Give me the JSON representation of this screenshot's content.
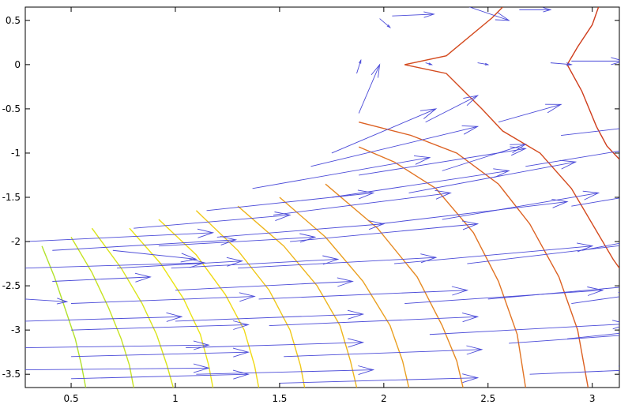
{
  "chart_data": {
    "type": "line",
    "subtype": "contour-with-quiver",
    "title": "",
    "xlabel": "",
    "ylabel": "",
    "xlim": [
      0.28,
      3.13
    ],
    "ylim": [
      -3.65,
      0.65
    ],
    "x_ticks": [
      0.5,
      1,
      1.5,
      2,
      2.5,
      3
    ],
    "x_tick_labels": [
      "0.5",
      "1",
      "1.5",
      "2",
      "2.5",
      "3"
    ],
    "y_ticks": [
      0.5,
      0,
      -0.5,
      -1,
      -1.5,
      -2,
      -2.5,
      -3,
      -3.5
    ],
    "y_tick_labels": [
      "0.5",
      "0",
      "-0.5",
      "-1",
      "-1.5",
      "-2",
      "-2.5",
      "-3",
      "-3.5"
    ],
    "grid": false,
    "legend": "none",
    "arrow_color": "#4a4ad8",
    "contours": [
      {
        "color": "#b2e22a",
        "points": [
          [
            0.36,
            -2.05
          ],
          [
            0.42,
            -2.4
          ],
          [
            0.47,
            -2.75
          ],
          [
            0.52,
            -3.1
          ],
          [
            0.55,
            -3.4
          ],
          [
            0.57,
            -3.65
          ]
        ]
      },
      {
        "color": "#c6e321",
        "points": [
          [
            0.5,
            -1.95
          ],
          [
            0.6,
            -2.35
          ],
          [
            0.68,
            -2.75
          ],
          [
            0.74,
            -3.1
          ],
          [
            0.78,
            -3.4
          ],
          [
            0.8,
            -3.65
          ]
        ]
      },
      {
        "color": "#d9e41a",
        "points": [
          [
            0.6,
            -1.85
          ],
          [
            0.74,
            -2.3
          ],
          [
            0.84,
            -2.7
          ],
          [
            0.91,
            -3.05
          ],
          [
            0.96,
            -3.4
          ],
          [
            0.99,
            -3.65
          ]
        ]
      },
      {
        "color": "#eae414",
        "points": [
          [
            0.78,
            -1.85
          ],
          [
            0.93,
            -2.25
          ],
          [
            1.04,
            -2.65
          ],
          [
            1.12,
            -3.05
          ],
          [
            1.16,
            -3.4
          ],
          [
            1.18,
            -3.65
          ]
        ]
      },
      {
        "color": "#f0d914",
        "points": [
          [
            0.92,
            -1.75
          ],
          [
            1.1,
            -2.15
          ],
          [
            1.24,
            -2.6
          ],
          [
            1.33,
            -3.0
          ],
          [
            1.38,
            -3.4
          ],
          [
            1.4,
            -3.65
          ]
        ]
      },
      {
        "color": "#f0c818",
        "points": [
          [
            1.1,
            -1.65
          ],
          [
            1.3,
            -2.1
          ],
          [
            1.45,
            -2.55
          ],
          [
            1.55,
            -3.0
          ],
          [
            1.6,
            -3.4
          ],
          [
            1.62,
            -3.65
          ]
        ]
      },
      {
        "color": "#eeb51c",
        "points": [
          [
            1.3,
            -1.6
          ],
          [
            1.52,
            -2.05
          ],
          [
            1.68,
            -2.5
          ],
          [
            1.79,
            -2.95
          ],
          [
            1.84,
            -3.35
          ],
          [
            1.87,
            -3.65
          ]
        ]
      },
      {
        "color": "#eaa020",
        "points": [
          [
            1.5,
            -1.5
          ],
          [
            1.72,
            -1.95
          ],
          [
            1.9,
            -2.45
          ],
          [
            2.03,
            -2.95
          ],
          [
            2.09,
            -3.35
          ],
          [
            2.12,
            -3.65
          ]
        ]
      },
      {
        "color": "#e68a22",
        "points": [
          [
            1.72,
            -1.35
          ],
          [
            1.97,
            -1.85
          ],
          [
            2.16,
            -2.4
          ],
          [
            2.28,
            -2.95
          ],
          [
            2.35,
            -3.35
          ],
          [
            2.38,
            -3.65
          ]
        ]
      },
      {
        "color": "#e27424",
        "points": [
          [
            1.88,
            -0.93
          ],
          [
            2.05,
            -1.1
          ],
          [
            2.25,
            -1.4
          ],
          [
            2.43,
            -1.9
          ],
          [
            2.55,
            -2.45
          ],
          [
            2.64,
            -3.05
          ],
          [
            2.68,
            -3.65
          ]
        ]
      },
      {
        "color": "#dc6022",
        "points": [
          [
            1.88,
            -0.65
          ],
          [
            2.13,
            -0.8
          ],
          [
            2.35,
            -1.0
          ],
          [
            2.55,
            -1.35
          ],
          [
            2.7,
            -1.8
          ],
          [
            2.84,
            -2.4
          ],
          [
            2.93,
            -3.0
          ],
          [
            2.98,
            -3.65
          ]
        ]
      },
      {
        "color": "#d44a1e",
        "points": [
          [
            2.1,
            0.0
          ],
          [
            2.3,
            0.1
          ],
          [
            2.52,
            0.53
          ],
          [
            2.57,
            0.65
          ]
        ]
      },
      {
        "color": "#d44a1e",
        "points": [
          [
            2.1,
            0.0
          ],
          [
            2.3,
            -0.1
          ],
          [
            2.47,
            -0.5
          ],
          [
            2.57,
            -0.75
          ],
          [
            2.75,
            -1.0
          ],
          [
            2.9,
            -1.4
          ],
          [
            3.0,
            -1.8
          ],
          [
            3.1,
            -2.2
          ],
          [
            3.13,
            -2.3
          ]
        ]
      },
      {
        "color": "#cf3d1c",
        "points": [
          [
            2.88,
            0.0
          ],
          [
            2.93,
            0.2
          ],
          [
            3.0,
            0.45
          ],
          [
            3.03,
            0.65
          ]
        ]
      },
      {
        "color": "#cf3d1c",
        "points": [
          [
            2.88,
            0.0
          ],
          [
            2.95,
            -0.3
          ],
          [
            3.02,
            -0.7
          ],
          [
            3.07,
            -0.92
          ],
          [
            3.13,
            -1.07
          ]
        ]
      }
    ],
    "vectors": [
      {
        "x": 0.28,
        "y": -2.0,
        "u": 0.9,
        "v": 0.1
      },
      {
        "x": 0.28,
        "y": -2.3,
        "u": 0.86,
        "v": 0.06
      },
      {
        "x": 0.28,
        "y": -2.65,
        "u": 0.2,
        "v": -0.03
      },
      {
        "x": 0.28,
        "y": -2.9,
        "u": 0.75,
        "v": 0.05
      },
      {
        "x": 0.28,
        "y": -3.2,
        "u": 0.88,
        "v": 0.03
      },
      {
        "x": 0.28,
        "y": -3.45,
        "u": 0.88,
        "v": 0.02
      },
      {
        "x": 0.41,
        "y": -2.1,
        "u": 0.88,
        "v": 0.12
      },
      {
        "x": 0.41,
        "y": -2.45,
        "u": 0.47,
        "v": 0.05
      },
      {
        "x": 0.5,
        "y": -2.7,
        "u": 0.88,
        "v": 0.08
      },
      {
        "x": 0.5,
        "y": -3.0,
        "u": 0.85,
        "v": 0.06
      },
      {
        "x": 0.5,
        "y": -3.3,
        "u": 0.85,
        "v": 0.05
      },
      {
        "x": 0.5,
        "y": -3.55,
        "u": 0.85,
        "v": 0.05
      },
      {
        "x": 0.7,
        "y": -2.1,
        "u": 0.4,
        "v": -0.1
      },
      {
        "x": 0.72,
        "y": -2.3,
        "u": 0.6,
        "v": 0.08
      },
      {
        "x": 0.8,
        "y": -1.85,
        "u": 0.75,
        "v": 0.15
      },
      {
        "x": 0.92,
        "y": -2.05,
        "u": 0.75,
        "v": 0.1
      },
      {
        "x": 0.98,
        "y": -2.3,
        "u": 0.8,
        "v": 0.1
      },
      {
        "x": 1.0,
        "y": -2.55,
        "u": 0.85,
        "v": 0.1
      },
      {
        "x": 1.0,
        "y": -2.9,
        "u": 0.9,
        "v": 0.08
      },
      {
        "x": 1.05,
        "y": -3.2,
        "u": 0.85,
        "v": 0.06
      },
      {
        "x": 1.1,
        "y": -3.5,
        "u": 0.85,
        "v": 0.05
      },
      {
        "x": 1.15,
        "y": -1.65,
        "u": 0.8,
        "v": 0.2
      },
      {
        "x": 1.2,
        "y": -1.95,
        "u": 0.8,
        "v": 0.15
      },
      {
        "x": 1.3,
        "y": -2.3,
        "u": 0.95,
        "v": 0.12
      },
      {
        "x": 1.4,
        "y": -2.65,
        "u": 1.0,
        "v": 0.1
      },
      {
        "x": 1.45,
        "y": -2.95,
        "u": 1.0,
        "v": 0.1
      },
      {
        "x": 1.52,
        "y": -3.3,
        "u": 0.95,
        "v": 0.08
      },
      {
        "x": 1.5,
        "y": -3.6,
        "u": 0.95,
        "v": 0.06
      },
      {
        "x": 1.37,
        "y": -1.4,
        "u": 0.85,
        "v": 0.35
      },
      {
        "x": 1.47,
        "y": -1.7,
        "u": 0.85,
        "v": 0.25
      },
      {
        "x": 1.55,
        "y": -2.0,
        "u": 0.9,
        "v": 0.2
      },
      {
        "x": 1.65,
        "y": -1.15,
        "u": 0.8,
        "v": 0.45
      },
      {
        "x": 1.75,
        "y": -1.5,
        "u": 0.85,
        "v": 0.3
      },
      {
        "x": 1.88,
        "y": -1.25,
        "u": 0.8,
        "v": 0.3
      },
      {
        "x": 1.98,
        "y": -1.8,
        "u": 0.9,
        "v": 0.25
      },
      {
        "x": 2.05,
        "y": -2.25,
        "u": 0.95,
        "v": 0.2
      },
      {
        "x": 2.1,
        "y": -2.7,
        "u": 0.95,
        "v": 0.15
      },
      {
        "x": 2.22,
        "y": -3.05,
        "u": 0.95,
        "v": 0.12
      },
      {
        "x": 2.12,
        "y": -1.45,
        "u": 0.8,
        "v": 0.35
      },
      {
        "x": 2.28,
        "y": -1.75,
        "u": 0.75,
        "v": 0.3
      },
      {
        "x": 2.4,
        "y": -2.25,
        "u": 0.9,
        "v": 0.25
      },
      {
        "x": 2.5,
        "y": -2.65,
        "u": 0.95,
        "v": 0.2
      },
      {
        "x": 2.6,
        "y": -3.15,
        "u": 0.9,
        "v": 0.15
      },
      {
        "x": 2.7,
        "y": -3.5,
        "u": 0.5,
        "v": 0.05
      },
      {
        "x": 1.75,
        "y": -1.0,
        "u": 0.5,
        "v": 0.5
      },
      {
        "x": 2.2,
        "y": -0.65,
        "u": 0.25,
        "v": 0.3
      },
      {
        "x": 1.88,
        "y": -0.55,
        "u": 0.1,
        "v": 0.55
      },
      {
        "x": 1.87,
        "y": -0.1,
        "u": 0.02,
        "v": 0.15
      },
      {
        "x": 2.2,
        "y": 0.02,
        "u": 0.03,
        "v": -0.02
      },
      {
        "x": 2.45,
        "y": 0.02,
        "u": 0.05,
        "v": -0.02
      },
      {
        "x": 2.28,
        "y": -1.2,
        "u": 0.4,
        "v": 0.3
      },
      {
        "x": 2.55,
        "y": -0.65,
        "u": 0.3,
        "v": 0.2
      },
      {
        "x": 2.68,
        "y": -1.15,
        "u": 0.65,
        "v": 0.25
      },
      {
        "x": 2.85,
        "y": -0.8,
        "u": 0.55,
        "v": 0.15
      },
      {
        "x": 2.9,
        "y": -1.6,
        "u": 0.5,
        "v": 0.2
      },
      {
        "x": 2.95,
        "y": -2.1,
        "u": 0.45,
        "v": 0.2
      },
      {
        "x": 2.9,
        "y": -2.7,
        "u": 0.3,
        "v": 0.1
      },
      {
        "x": 2.88,
        "y": -3.1,
        "u": 0.4,
        "v": 0.1
      },
      {
        "x": 2.8,
        "y": 0.02,
        "u": 0.1,
        "v": -0.02
      },
      {
        "x": 2.9,
        "y": 0.04,
        "u": 0.25,
        "v": 0.0
      },
      {
        "x": 1.98,
        "y": 0.52,
        "u": 0.05,
        "v": -0.1
      },
      {
        "x": 2.04,
        "y": 0.55,
        "u": 0.2,
        "v": 0.02
      },
      {
        "x": 2.35,
        "y": 0.7,
        "u": 0.25,
        "v": -0.2
      },
      {
        "x": 2.65,
        "y": 0.62,
        "u": 0.15,
        "v": 0.0
      }
    ]
  }
}
